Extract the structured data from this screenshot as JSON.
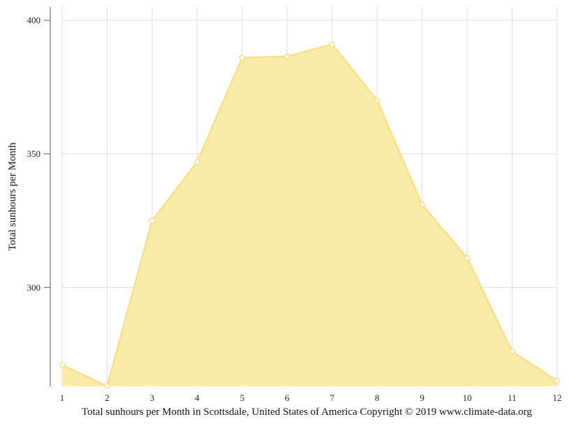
{
  "chart_data": {
    "type": "area",
    "x": [
      1,
      2,
      3,
      4,
      5,
      6,
      7,
      8,
      9,
      10,
      11,
      12
    ],
    "values": [
      271,
      263,
      325,
      347,
      386,
      386.5,
      391,
      370,
      331,
      311,
      276,
      265
    ],
    "title": "",
    "xlabel": "",
    "ylabel": "Total sunhours per Month",
    "ylim": [
      263,
      405
    ],
    "yticks": [
      300,
      350,
      400
    ],
    "xlim": [
      1,
      12
    ],
    "grid": true,
    "colors": {
      "fill": "#f9eba8",
      "line": "#f7df85",
      "marker_fill": "#ffffff",
      "grid": "#dddddd",
      "axis": "#555555"
    }
  },
  "caption": "Total sunhours per Month in Scottsdale, United States of America Copyright © 2019 www.climate-data.org"
}
